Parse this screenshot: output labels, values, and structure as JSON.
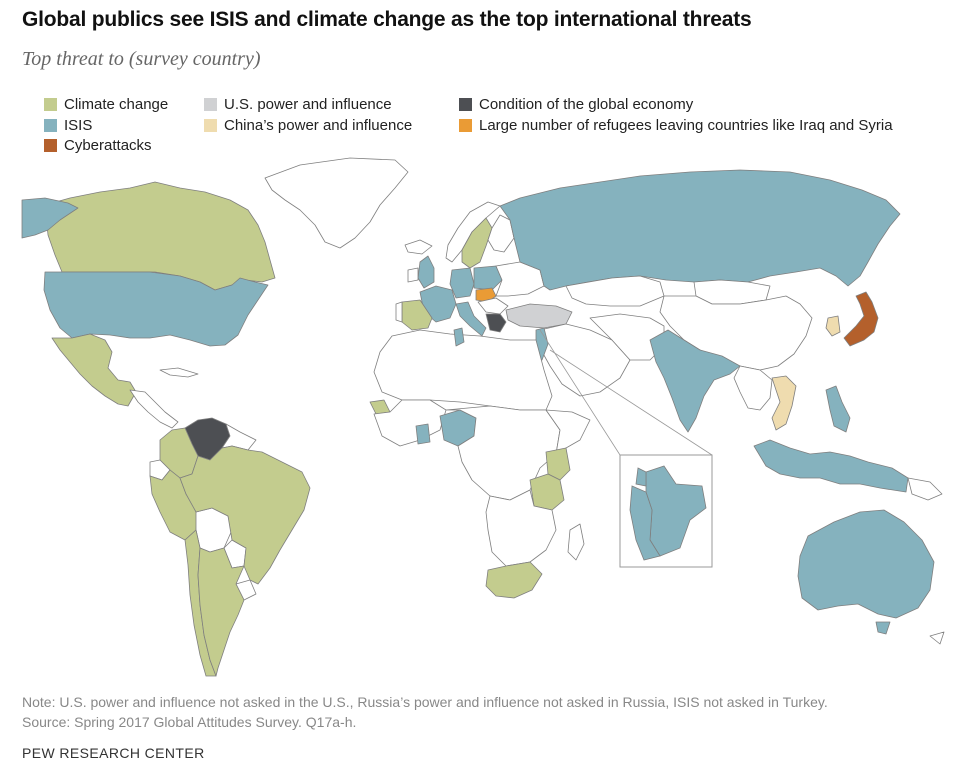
{
  "title": "Global publics see ISIS and climate change as the top international threats",
  "subtitle": "Top threat to (survey country)",
  "legend": [
    {
      "label": "Climate change",
      "color": "#c3cc8e"
    },
    {
      "label": "ISIS",
      "color": "#85b2be"
    },
    {
      "label": "Cyberattacks",
      "color": "#b4602c"
    },
    {
      "label": "U.S. power and influence",
      "color": "#d0d1d3"
    },
    {
      "label": "China’s power and influence",
      "color": "#efdcaf"
    },
    {
      "label": "Condition of the global economy",
      "color": "#4d4f53"
    },
    {
      "label": "Large number of refugees leaving countries like Iraq and Syria",
      "color": "#ea9b35"
    }
  ],
  "note_line1": "Note: U.S. power and influence not asked in the U.S., Russia’s power and influence not asked in Russia, ISIS not asked in Turkey.",
  "note_line2": "Source: Spring 2017 Global Attitudes Survey. Q17a-h.",
  "brand": "PEW RESEARCH CENTER",
  "colors": {
    "none": "#ffffff",
    "border": "#7f7f7f"
  },
  "regions": {
    "Canada": "Climate change",
    "United States": "ISIS",
    "Mexico": "Climate change",
    "Venezuela": "Condition of the global economy",
    "Colombia": "Climate change",
    "Peru": "Climate change",
    "Brazil": "Climate change",
    "Chile": "Climate change",
    "Argentina": "Climate change",
    "Spain": "Climate change",
    "France": "ISIS",
    "United Kingdom": "ISIS",
    "Germany": "ISIS",
    "Italy": "ISIS",
    "Netherlands": "ISIS",
    "Poland": "ISIS",
    "Sweden": "Climate change",
    "Hungary": "Large number of refugees leaving countries like Iraq and Syria",
    "Greece": "Condition of the global economy",
    "Turkey": "U.S. power and influence",
    "Russia": "ISIS",
    "Israel": "ISIS",
    "Jordan": "ISIS",
    "Lebanon": "ISIS",
    "Tunisia": "ISIS",
    "India": "ISIS",
    "Vietnam": "China’s power and influence",
    "South Korea": "China’s power and influence",
    "Japan": "Cyberattacks",
    "Philippines": "ISIS",
    "Indonesia": "ISIS",
    "Australia": "ISIS",
    "Senegal": "Climate change",
    "Ghana": "ISIS",
    "Nigeria": "ISIS",
    "Kenya": "Climate change",
    "Tanzania": "Climate change",
    "South Africa": "Climate change"
  }
}
